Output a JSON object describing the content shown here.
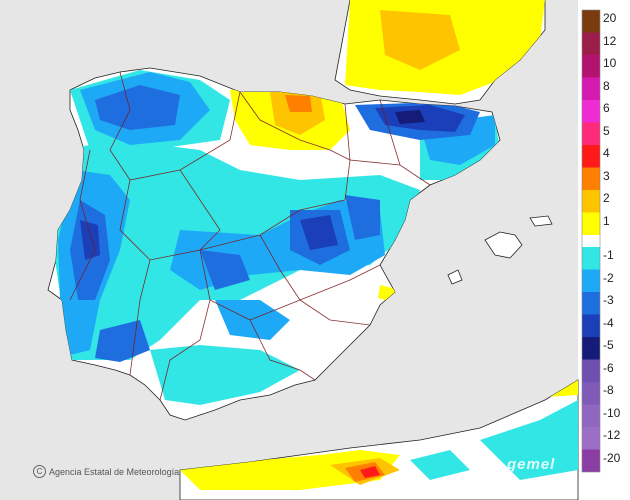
{
  "legend": {
    "ticks": [
      "20",
      "12",
      "10",
      "8",
      "6",
      "5",
      "4",
      "3",
      "2",
      "1",
      "-1",
      "-2",
      "-3",
      "-4",
      "-5",
      "-6",
      "-8",
      "-10",
      "-12",
      "-20"
    ],
    "positive_colors": [
      "#7a3c0f",
      "#9b1d4a",
      "#b3126e",
      "#d41ab0",
      "#ef2bd3",
      "#ff2a7a",
      "#ff1a1a",
      "#ff7f00",
      "#ffc400",
      "#ffff00"
    ],
    "negative_colors": [
      "#33e6e6",
      "#1ea9f7",
      "#1f6ee0",
      "#1a3fb8",
      "#141b78",
      "#6f4fb0",
      "#7f5ab8",
      "#8f66c0",
      "#9c6fc7",
      "#8a3ea3"
    ]
  },
  "colors": {
    "sea": "#e6e6e6",
    "land": "#ffffff",
    "border_region": "#7a1a1a",
    "border_country": "#222222"
  },
  "credit": "Agencia Estatal de Meteorología",
  "watermark": "gemel"
}
